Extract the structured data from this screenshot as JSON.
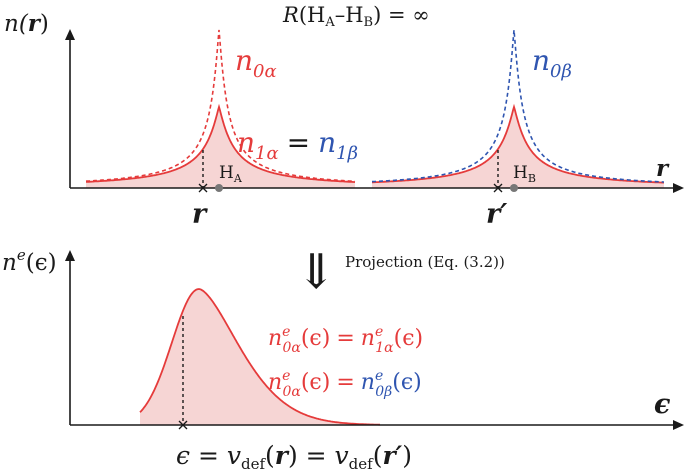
{
  "title": {
    "prefix": "R",
    "open": "(H",
    "sub_a": "A",
    "dash": "–H",
    "sub_b": "B",
    "close": ") = ∞"
  },
  "top_panel": {
    "ylabel": {
      "main": "n(",
      "var": "r",
      "close": ")"
    },
    "xlabel": "r",
    "curves": {
      "n0a": {
        "base": "n",
        "sub": "0α"
      },
      "n0b": {
        "base": "n",
        "sub": "0β"
      },
      "n1a": {
        "base": "n",
        "sub": "1α"
      },
      "eq": "=",
      "n1b": {
        "base": "n",
        "sub": "1β"
      }
    },
    "nuclei": {
      "A": {
        "base": "H",
        "sub": "A"
      },
      "B": {
        "base": "H",
        "sub": "B"
      }
    },
    "points": {
      "r": "r",
      "r_prime": "r′"
    }
  },
  "projection": {
    "arrow": "⇓",
    "label": "Projection (Eq. (3.2))"
  },
  "bottom_panel": {
    "ylabel": {
      "main": "n",
      "sup": "e",
      "arg": "(ϵ)"
    },
    "xlabel": "ϵ",
    "eq1": {
      "lhs_base": "n",
      "lhs_sup": "e",
      "lhs_sub": "0α",
      "lhs_arg": "(ϵ)",
      "eq": "=",
      "rhs_base": "n",
      "rhs_sup": "e",
      "rhs_sub": "1α",
      "rhs_arg": "(ϵ)"
    },
    "eq2": {
      "lhs_base": "n",
      "lhs_sup": "e",
      "lhs_sub": "0α",
      "lhs_arg": "(ϵ)",
      "eq": "=",
      "rhs_base": "n",
      "rhs_sup": "e",
      "rhs_sub": "0β",
      "rhs_arg": "(ϵ)"
    },
    "bottom_eq": {
      "eps": "ϵ = ",
      "v1": "v",
      "sub1": "def",
      "arg1_open": "(",
      "arg1_var": "r",
      "arg1_close": ")",
      "eq": " = ",
      "v2": "v",
      "sub2": "def",
      "arg2_open": "(",
      "arg2_var": "r′",
      "arg2_close": ")"
    }
  },
  "colors": {
    "red": "#e53b3b",
    "blue": "#2f55b0",
    "fill": "#f6d5d4",
    "axis": "#1a1a1a",
    "nucleus": "#777777"
  }
}
